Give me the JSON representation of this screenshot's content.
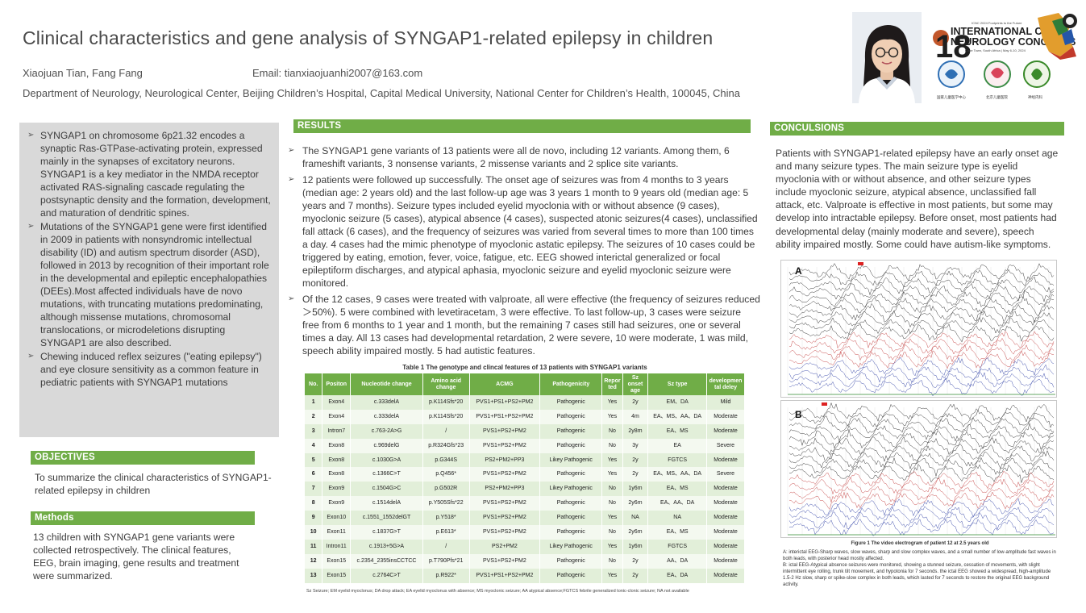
{
  "title": "Clinical characteristics and gene analysis of SYNGAP1-related epilepsy in children",
  "authors": "Xiaojuan Tian, Fang Fang",
  "email": "Email: tianxiaojuanhi2007@163.com",
  "affiliation": "Department of Neurology, Neurological Center, Beijing Children’s Hospital, Capital Medical University, National Center for Children’s Health, 100045, China",
  "logo": {
    "badge": "ICNC 2024 Footprints to the Future",
    "number": "18",
    "line1": "INTERNATIONAL CHILD",
    "line2": "NEUROLOGY CONGRESS",
    "place": "Cape Town, South Africa | May 6-10, 2024",
    "org1": "国家儿童医学中心",
    "org2": "北京儿童医院",
    "org3": "神经内科"
  },
  "intro": [
    "SYNGAP1 on chromosome 6p21.32 encodes a synaptic Ras-GTPase-activating protein, expressed mainly in the synapses of excitatory neurons. SYNGAP1 is a key mediator in the NMDA receptor activated RAS-signaling cascade regulating the postsynaptic density and the formation, development, and maturation of dendritic spines.",
    "Mutations of the SYNGAP1 gene were first identified in 2009 in patients with nonsyndromic intellectual disability (ID) and autism spectrum disorder (ASD), followed in 2013 by recognition of their important role in the developmental and epileptic encephalopathies (DEEs).Most affected individuals have de novo mutations, with truncating mutations predominating, although missense mutations, chromosomal translocations, or microdeletions disrupting SYNGAP1 are also described.",
    " Chewing induced reflex seizures (\"eating epilepsy\") and eye closure sensitivity as a common feature in pediatric patients with SYNGAP1 mutations"
  ],
  "objectives": {
    "heading": "OBJECTIVES",
    "text": "To summarize the clinical characteristics of SYNGAP1-related epilepsy in children"
  },
  "methods": {
    "heading": "Methods",
    "text": "13 children with SYNGAP1 gene variants were collected retrospectively. The clinical features, EEG, brain imaging, gene results and treatment were summarized."
  },
  "results": {
    "heading": "RESULTS",
    "bullets": [
      "The SYNGAP1 gene variants of 13 patients were all de novo, including 12 variants. Among them, 6 frameshift variants, 3 nonsense variants, 2  missense variants and 2 splice site variants.",
      "12 patients were followed up successfully. The onset age of seizures was from 4 months to 3 years (median age: 2 years old) and the last follow-up age was 3 years 1 month to 9 years old (median age: 5 years and 7 months). Seizure types included eyelid myoclonia with or without absence (9 cases), myoclonic seizure (5 cases), atypical absence (4 cases), suspected atonic seizures(4 cases),    unclassified fall attack (6 cases), and the frequency of seizures was varied from several times to more than 100 times a day. 4 cases had the mimic phenotype of myoclonic astatic epilepsy. The seizures of 10 cases could be triggered by eating, emotion, fever, voice, fatigue, etc. EEG showed interictal generalized or focal epileptiform discharges, and atypical aphasia, myoclonic seizure and eyelid myoclonic seizure were monitored.",
      "Of the 12 cases, 9 cases were treated with valproate, all were effective (the frequency of seizures reduced ＞50%). 5 were combined with levetiracetam, 3 were effective. To last follow-up, 3 cases were seizure free from 6 months to 1 year and 1 month, but the remaining 7 cases still had seizures, one or several times a day. All 13 cases had developmental retardation, 2 were severe, 10 were moderate, 1 was mild, speech ability impaired mostly. 5 had autistic features."
    ]
  },
  "table": {
    "caption": "Table 1  The genotype and clincal features of 13 patients with SYNGAP1 variants",
    "headers": [
      "No.",
      "Positon",
      "Nucleotide change",
      "Amino acid change",
      "ACMG",
      "Pathogenicity",
      "Repor ted",
      "Sz onset age",
      "Sz type",
      "developmen tal deley"
    ],
    "rows": [
      [
        "1",
        "Exon4",
        "c.333delA",
        "p.K114Sfs*20",
        "PVS1+PS1+PS2+PM2",
        "Pathogenic",
        "Yes",
        "2y",
        "EM、DA",
        "Mild"
      ],
      [
        "2",
        "Exon4",
        "c.333delA",
        "p.K114Sfs*20",
        "PVS1+PS1+PS2+PM2",
        "Pathogenic",
        "Yes",
        "4m",
        "EA、MS、AA、DA",
        "Moderate"
      ],
      [
        "3",
        "Intron7",
        "c.763-2A>G",
        "/",
        "PVS1+PS2+PM2",
        "Pathogenic",
        "No",
        "2y8m",
        "EA、MS",
        "Moderate"
      ],
      [
        "4",
        "Exon8",
        "c.969delG",
        "p.R324Gfs*23",
        "PVS1+PS2+PM2",
        "Pathogenic",
        "No",
        "3y",
        "EA",
        "Severe"
      ],
      [
        "5",
        "Exon8",
        "c.1030G>A",
        "p.G344S",
        "PS2+PM2+PP3",
        "Likey Pathogenic",
        "Yes",
        "2y",
        "FGTCS",
        "Moderate"
      ],
      [
        "6",
        "Exon8",
        "c.1366C>T",
        "p.Q456*",
        "PVS1+PS2+PM2",
        "Pathogenic",
        "Yes",
        "2y",
        "EA、MS、AA、DA",
        "Severe"
      ],
      [
        "7",
        "Exon9",
        "c.1504G>C",
        "p.G502R",
        "PS2+PM2+PP3",
        "Likey Pathogenic",
        "No",
        "1y6m",
        "EA、MS",
        "Moderate"
      ],
      [
        "8",
        "Exon9",
        "c.1514delA",
        "p.Y505Sfs*22",
        "PVS1+PS2+PM2",
        "Pathogenic",
        "No",
        "2y6m",
        "EA、AA、DA",
        "Moderate"
      ],
      [
        "9",
        "Exon10",
        "c.1551_1552delGT",
        "p.Y518*",
        "PVS1+PS2+PM2",
        "Pathogenic",
        "Yes",
        "NA",
        "NA",
        "Moderate"
      ],
      [
        "10",
        "Exon11",
        "c.1837G>T",
        "p.E613*",
        "PVS1+PS2+PM2",
        "Pathogenic",
        "No",
        "2y6m",
        "EA、MS",
        "Moderate"
      ],
      [
        "11",
        "Intron11",
        "c.1913+5G>A",
        "/",
        "PS2+PM2",
        "Likey Pathogenic",
        "Yes",
        "1y6m",
        "FGTCS",
        "Moderate"
      ],
      [
        "12",
        "Exon15",
        "c.2354_2355insCCTCC",
        "p.T790Pfs*21",
        "PVS1+PS2+PM2",
        "Pathogenic",
        "No",
        "2y",
        "AA、DA",
        "Moderate"
      ],
      [
        "13",
        "Exon15",
        "c.2764C>T",
        "p.R922*",
        "PVS1+PS1+PS2+PM2",
        "Pathogenic",
        "Yes",
        "2y",
        "EA、DA",
        "Moderate"
      ]
    ],
    "footnote": "Sz Seizure; EM eyelid myoclonus; DA drop attack; EA eyelid myoclonus with absence; MS myoclonic seizure; AA atypical absence;FGTCS febrile generalized tonic-clonic seizure; NA not available"
  },
  "conclusions": {
    "heading": "CONCULSIONS",
    "text": "Patients with SYNGAP1-related epilepsy have an early onset age and many seizure types. The main seizure type is eyelid myoclonia with or without absence, and other seizure types include myoclonic seizure, atypical absence, unclassified fall attack, etc. Valproate is effective in most patients, but some may develop into intractable epilepsy. Before onset, most patients had developmental delay (mainly moderate and severe), speech ability impaired mostly. Some could have autism-like symptoms."
  },
  "figure": {
    "label_a": "A",
    "label_b": "B",
    "caption_title": "Figure 1  The video electrogram of patient 12 at 2.5 years old",
    "caption_a": "A:   interictal EEG-Sharp waves, slow waves, sharp and slow complex waves, and a small number of low-amplitude fast waves in both leads, with posterior head mostly affected.",
    "caption_b": "B:   ictal EEG-Atypical absence seizures were monitored, showing a stunned seizure, cessation of movements, with slight intermittent eye rolling, trunk tilt movement, and hypotonia for 7 seconds. the ictal EEG showed a widespread, high-amplitude 1.5-2 Hz slow, sharp or spike-slow complex in both leads, which lasted for 7 seconds to restore the original EEG background activity."
  }
}
